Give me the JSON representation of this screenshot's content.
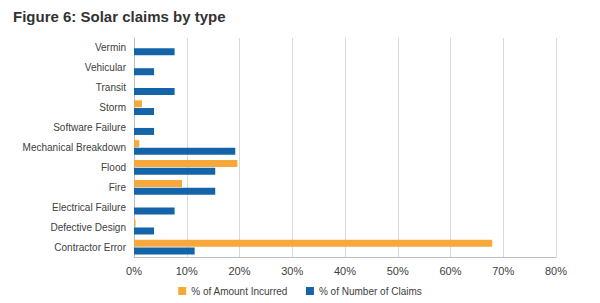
{
  "chart_data": {
    "type": "bar",
    "orientation": "horizontal",
    "title": "Figure 6: Solar claims by type",
    "categories": [
      "Contractor Error",
      "Defective Design",
      "Electrical Failure",
      "Fire",
      "Flood",
      "Mechanical Breakdown",
      "Software Failure",
      "Storm",
      "Transit",
      "Vehicular",
      "Vermin"
    ],
    "series": [
      {
        "name": "% of Amount Incurred",
        "color": "#f6a83b",
        "values": [
          67.9,
          0.3,
          0,
          9.1,
          19.6,
          1.0,
          0,
          1.5,
          0,
          0,
          0
        ]
      },
      {
        "name": "% of Number of Claims",
        "color": "#1464a9",
        "values": [
          11.5,
          3.8,
          7.7,
          15.4,
          15.4,
          19.2,
          3.8,
          3.8,
          7.7,
          3.8,
          7.7
        ]
      }
    ],
    "xlim": [
      0,
      80
    ],
    "xticks": [
      {
        "value": 0,
        "label": "0%"
      },
      {
        "value": 10,
        "label": "10%"
      },
      {
        "value": 20,
        "label": "20%"
      },
      {
        "value": 30,
        "label": "30%"
      },
      {
        "value": 40,
        "label": "40%"
      },
      {
        "value": 50,
        "label": "50%"
      },
      {
        "value": 60,
        "label": "60%"
      },
      {
        "value": 70,
        "label": "70%"
      },
      {
        "value": 80,
        "label": "80%"
      }
    ],
    "grid": true,
    "legend": "bottom"
  }
}
